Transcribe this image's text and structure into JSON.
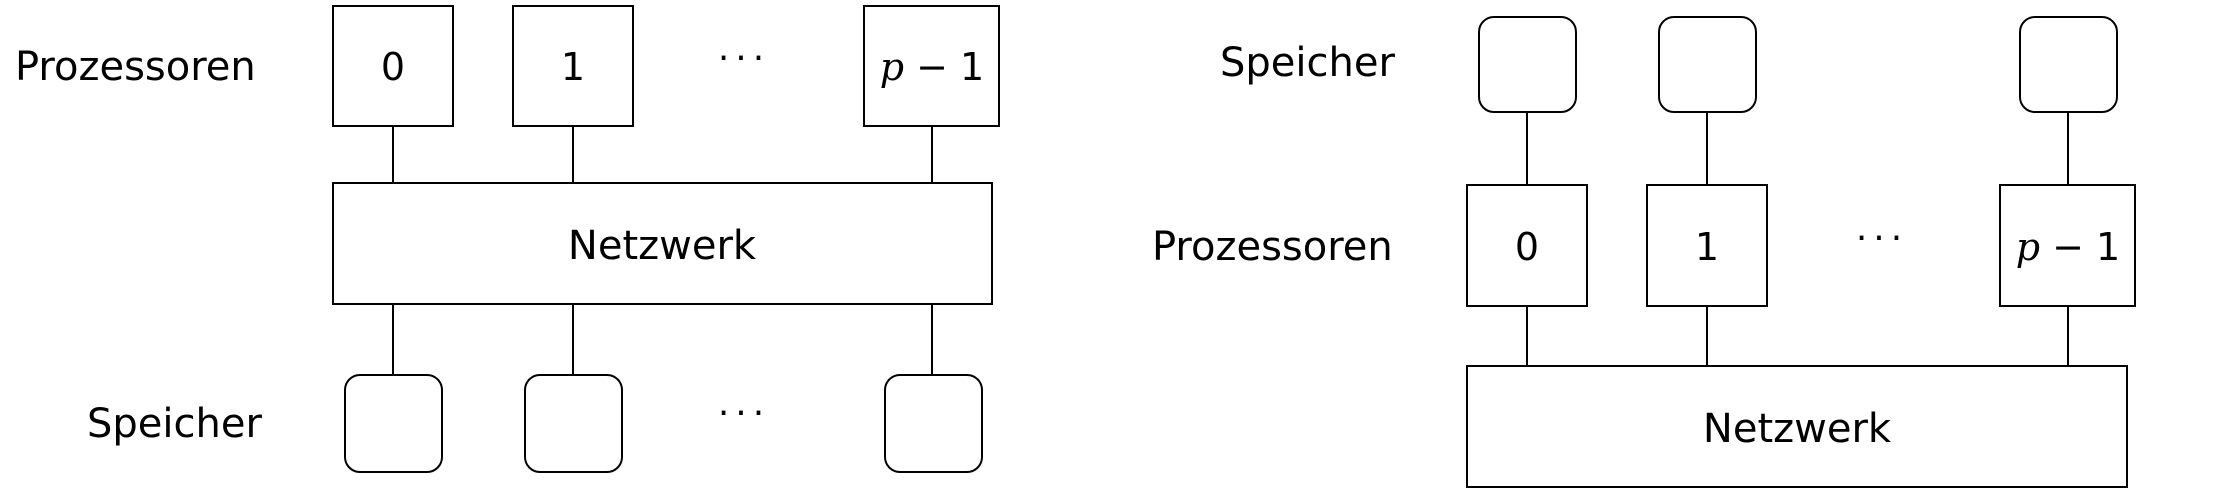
{
  "left": {
    "processors_label": "Prozessoren",
    "memory_label": "Speicher",
    "network_label": "Netzwerk",
    "processor_ids": [
      "0",
      "1"
    ],
    "last_processor": {
      "var": "p",
      "suffix": " − 1"
    },
    "ellipsis_processors": "···",
    "ellipsis_memory": "···"
  },
  "right": {
    "memory_label": "Speicher",
    "processors_label": "Prozessoren",
    "network_label": "Netzwerk",
    "processor_ids": [
      "0",
      "1"
    ],
    "last_processor": {
      "var": "p",
      "suffix": " − 1"
    },
    "ellipsis_processors": "···"
  }
}
